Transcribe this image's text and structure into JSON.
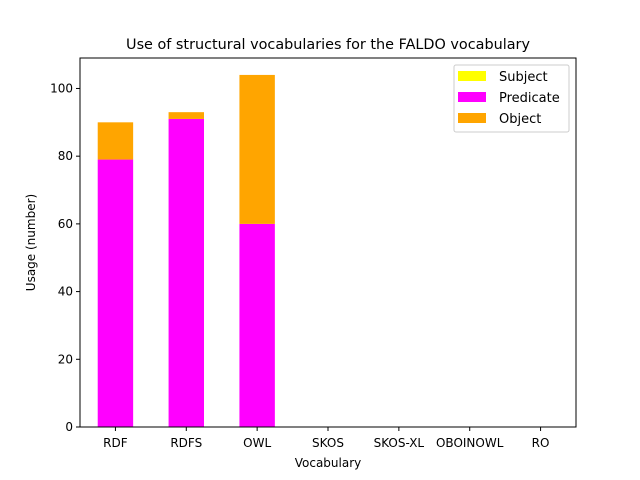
{
  "chart_data": {
    "type": "bar",
    "stacked": true,
    "title": "Use of structural vocabularies for the FALDO vocabulary",
    "xlabel": "Vocabulary",
    "ylabel": "Usage (number)",
    "categories": [
      "RDF",
      "RDFS",
      "OWL",
      "SKOS",
      "SKOS-XL",
      "OBOINOWL",
      "RO"
    ],
    "ylim": [
      0,
      109
    ],
    "yticks": [
      0,
      20,
      40,
      60,
      80,
      100
    ],
    "series": [
      {
        "name": "Subject",
        "color": "#ffff00",
        "values": [
          0,
          0,
          0,
          0,
          0,
          0,
          0
        ]
      },
      {
        "name": "Predicate",
        "color": "#ff00ff",
        "values": [
          79,
          91,
          60,
          0,
          0,
          0,
          0
        ]
      },
      {
        "name": "Object",
        "color": "#ffa500",
        "values": [
          11,
          2,
          44,
          0,
          0,
          0,
          0
        ]
      }
    ],
    "legend": "top-right",
    "grid": false
  }
}
